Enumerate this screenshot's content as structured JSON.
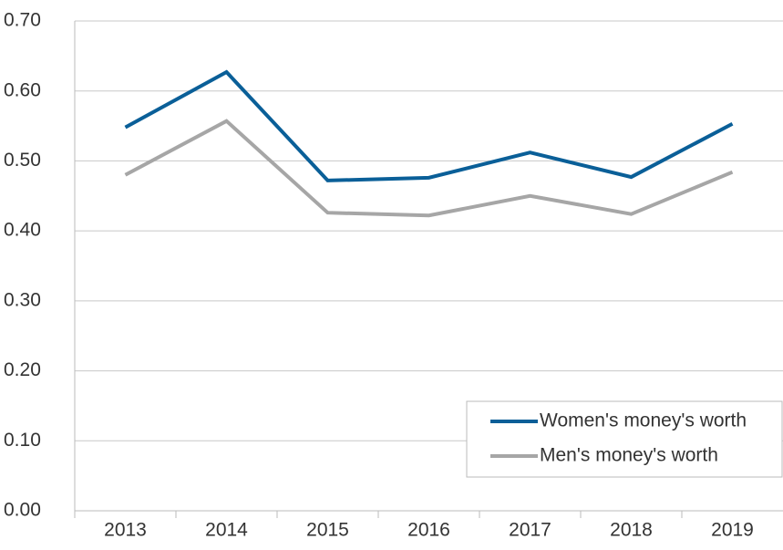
{
  "chart_data": {
    "type": "line",
    "categories": [
      "2013",
      "2014",
      "2015",
      "2016",
      "2017",
      "2018",
      "2019"
    ],
    "series": [
      {
        "name": "Women's money's worth",
        "color": "#0a5f98",
        "values": [
          0.548,
          0.627,
          0.472,
          0.476,
          0.512,
          0.477,
          0.553
        ]
      },
      {
        "name": "Men's money's worth",
        "color": "#a6a6a6",
        "values": [
          0.48,
          0.557,
          0.426,
          0.422,
          0.45,
          0.424,
          0.484
        ]
      }
    ],
    "ylim": [
      0,
      0.7
    ],
    "yticks": [
      {
        "value": 0,
        "label": "0.00"
      },
      {
        "value": 0.1,
        "label": "0.10"
      },
      {
        "value": 0.2,
        "label": "0.20"
      },
      {
        "value": 0.3,
        "label": "0.30"
      },
      {
        "value": 0.4,
        "label": "0.40"
      },
      {
        "value": 0.5,
        "label": "0.50"
      },
      {
        "value": 0.6,
        "label": "0.60"
      },
      {
        "value": 0.7,
        "label": "0.70"
      }
    ],
    "grid": true,
    "legend": "lower right"
  }
}
